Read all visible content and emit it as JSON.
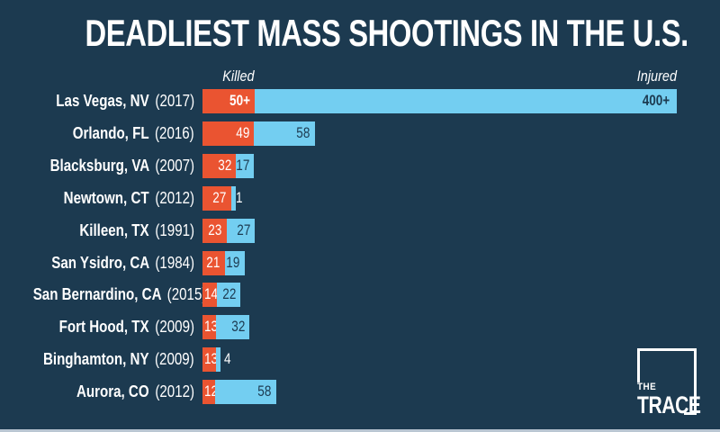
{
  "title": "DEADLIEST MASS SHOOTINGS IN THE U.S.",
  "colors": {
    "background": "#1c3a50",
    "killed_bar": "#ea5431",
    "injured_bar": "#73cef1",
    "text_light": "#ffffff",
    "text_on_injured": "#1c3a50",
    "bottom_strip": "#b9c6d2"
  },
  "headers": {
    "killed": "Killed",
    "injured": "Injured"
  },
  "chart_data": {
    "type": "bar",
    "orientation": "horizontal",
    "stacked": true,
    "title": "DEADLIEST MASS SHOOTINGS IN THE U.S.",
    "series_names": [
      "Killed",
      "Injured"
    ],
    "legend_position": "top (column headers over first row)",
    "grid": false,
    "rows": [
      {
        "location": "Las Vegas, NV",
        "year_label": "(2017)",
        "killed": 50,
        "injured": 400,
        "killed_label": "50+",
        "injured_label": "400+",
        "bold_value_labels": true,
        "injured_bar_capped_full_width": true
      },
      {
        "location": "Orlando, FL",
        "year_label": "(2016)",
        "killed": 49,
        "injured": 58,
        "killed_label": "49",
        "injured_label": "58"
      },
      {
        "location": "Blacksburg, VA",
        "year_label": "(2007)",
        "killed": 32,
        "injured": 17,
        "killed_label": "32",
        "injured_label": "17"
      },
      {
        "location": "Newtown, CT",
        "year_label": "(2012)",
        "killed": 27,
        "injured": 1,
        "killed_label": "27",
        "injured_label": "1"
      },
      {
        "location": "Killeen, TX",
        "year_label": "(1991)",
        "killed": 23,
        "injured": 27,
        "killed_label": "23",
        "injured_label": "27"
      },
      {
        "location": "San Ysidro, CA",
        "year_label": "(1984)",
        "killed": 21,
        "injured": 19,
        "killed_label": "21",
        "injured_label": "19"
      },
      {
        "location": "San Bernardino, CA",
        "year_label": "(2015)",
        "killed": 14,
        "injured": 22,
        "killed_label": "14",
        "injured_label": "22"
      },
      {
        "location": "Fort Hood, TX",
        "year_label": "(2009)",
        "killed": 13,
        "injured": 32,
        "killed_label": "13",
        "injured_label": "32"
      },
      {
        "location": "Binghamton, NY",
        "year_label": "(2009)",
        "killed": 13,
        "injured": 4,
        "killed_label": "13",
        "injured_label": "4"
      },
      {
        "location": "Aurora, CO",
        "year_label": "(2012)",
        "killed": 12,
        "injured": 58,
        "killed_label": "12",
        "injured_label": "58"
      }
    ]
  },
  "logo": {
    "line1": "THE",
    "line2": "TRACE"
  }
}
